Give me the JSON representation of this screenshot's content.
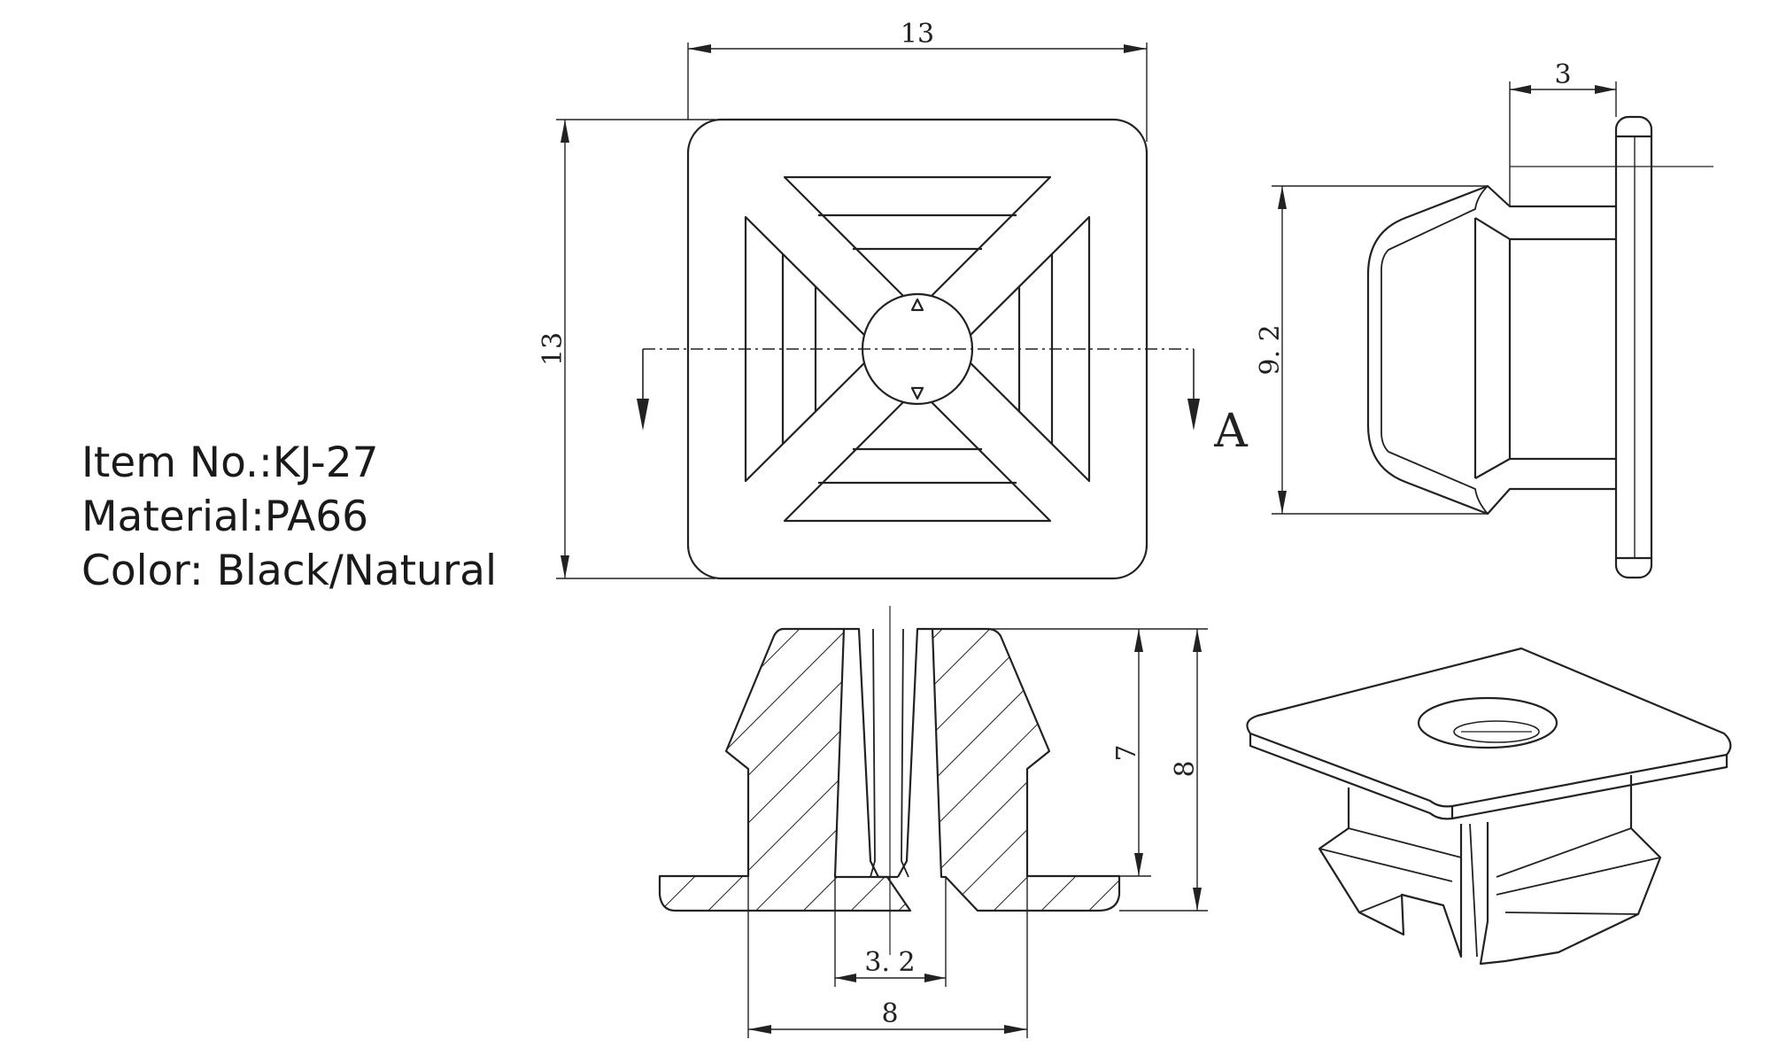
{
  "spec": {
    "item": "Item No.:KJ-27",
    "material": "Material:PA66",
    "color": "Color: Black/Natural"
  },
  "dimensions": {
    "top_width": "13",
    "top_height": "13",
    "side_flange": "3",
    "side_height": "9. 2",
    "section_height_inner": "7",
    "section_height_total": "8",
    "section_hole": "3. 2",
    "section_base": "8"
  },
  "section_label": "A"
}
